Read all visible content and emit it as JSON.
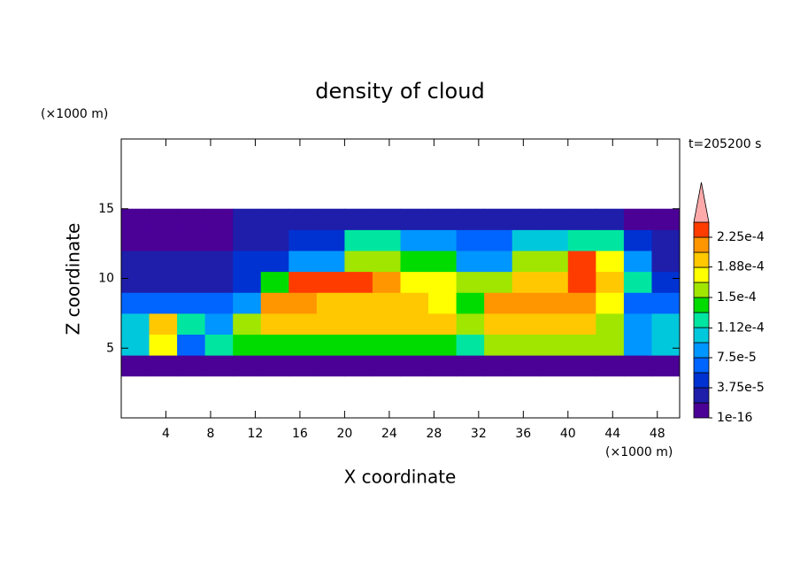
{
  "chart_data": {
    "type": "contour",
    "title": "density of cloud",
    "x_label": "X coordinate",
    "y_label": "Z coordinate",
    "x_unit": "(×1000 m)",
    "y_unit": "(×1000 m)",
    "annotation": "t=205200 s",
    "xlim": [
      0,
      50
    ],
    "ylim": [
      0,
      20
    ],
    "xticks": [
      4,
      8,
      12,
      16,
      20,
      24,
      28,
      32,
      36,
      40,
      44,
      48
    ],
    "yticks": [
      5,
      10,
      15
    ],
    "field": {
      "xgrid": [
        0,
        2.5,
        5,
        7.5,
        10,
        12.5,
        15,
        17.5,
        20,
        22.5,
        25,
        27.5,
        30,
        32.5,
        35,
        37.5,
        40,
        42.5,
        45,
        47.5,
        50
      ],
      "zgrid": [
        3,
        4.5,
        6,
        7.5,
        9,
        10.5,
        12,
        13.5,
        15
      ],
      "z": [
        [
          1e-05,
          1e-05,
          1e-05,
          1e-05,
          1e-05,
          1e-05,
          1e-05,
          1e-05,
          1e-05,
          1e-05,
          1e-05,
          1e-05,
          1e-05,
          1e-05,
          1e-05,
          1e-05,
          1e-05,
          1e-05,
          1e-05,
          1e-05
        ],
        [
          0.0001,
          0.00018,
          6e-05,
          0.00013,
          0.00014,
          0.00014,
          0.00014,
          0.00014,
          0.00014,
          0.00014,
          0.00014,
          0.00014,
          0.00012,
          0.00015,
          0.00015,
          0.00015,
          0.00015,
          0.00015,
          8e-05,
          0.0001
        ],
        [
          0.00011,
          0.00019,
          0.00012,
          9e-05,
          0.00016,
          0.00019,
          0.00019,
          0.00019,
          0.00019,
          0.00019,
          0.00019,
          0.00019,
          0.00015,
          0.00019,
          0.00019,
          0.00019,
          0.00019,
          0.00015,
          9e-05,
          0.00011
        ],
        [
          7e-05,
          6e-05,
          6e-05,
          6e-05,
          9e-05,
          0.00021,
          0.00021,
          0.00019,
          0.00019,
          0.0002,
          0.0002,
          0.00017,
          0.00014,
          0.00022,
          0.00022,
          0.00022,
          0.00022,
          0.00018,
          7e-05,
          7e-05
        ],
        [
          3e-05,
          3e-05,
          3e-05,
          3e-05,
          4e-05,
          0.00014,
          0.00023,
          0.00023,
          0.00023,
          0.00022,
          0.00017,
          0.00017,
          0.00015,
          0.00015,
          0.0002,
          0.0002,
          0.00023,
          0.0002,
          0.00012,
          4e-05
        ],
        [
          2e-05,
          2e-05,
          2e-05,
          2e-05,
          4e-05,
          4e-05,
          8e-05,
          8e-05,
          0.00016,
          0.00016,
          0.00014,
          0.00014,
          9e-05,
          9e-05,
          0.00015,
          0.00015,
          0.00024,
          0.00018,
          9e-05,
          3e-05
        ],
        [
          1e-05,
          1e-05,
          1e-05,
          1e-05,
          3e-05,
          3e-05,
          5e-05,
          5e-05,
          0.00013,
          0.00013,
          9e-05,
          9e-05,
          6e-05,
          6e-05,
          0.0001,
          0.0001,
          0.00012,
          0.00012,
          5e-05,
          2e-05
        ],
        [
          1e-05,
          1e-05,
          1e-05,
          1e-05,
          2e-05,
          2e-05,
          2e-05,
          2e-05,
          3e-05,
          3e-05,
          3e-05,
          3e-05,
          3e-05,
          3e-05,
          3e-05,
          3e-05,
          2.5e-05,
          2.5e-05,
          1e-05,
          1e-05
        ]
      ]
    },
    "colorbar": {
      "levels": [
        1e-16,
        1.875e-05,
        3.75e-05,
        5.625e-05,
        7.5e-05,
        9.375e-05,
        0.0001125,
        0.00013125,
        0.00015,
        0.00016875,
        0.0001875,
        0.00020625,
        0.000225,
        0.00024375
      ],
      "colors": [
        "#4b0096",
        "#1e1eaa",
        "#0032d2",
        "#0064ff",
        "#0096ff",
        "#00c8dc",
        "#00e6a0",
        "#00dc00",
        "#a0e600",
        "#ffff00",
        "#ffc800",
        "#ff9600",
        "#ff3c00"
      ],
      "extend_color": "#ffaaaa",
      "ticks": [
        1e-16,
        {
          "value": 3.75e-05,
          "label": "3.75e-5"
        },
        {
          "value": 7.5e-05,
          "label": "7.5e-5"
        },
        {
          "value": 0.000112,
          "label": "1.12e-4"
        },
        {
          "value": 0.00015,
          "label": "1.5e-4"
        },
        {
          "value": 0.000188,
          "label": "1.88e-4"
        },
        {
          "value": 0.000225,
          "label": "2.25e-4"
        }
      ]
    }
  }
}
